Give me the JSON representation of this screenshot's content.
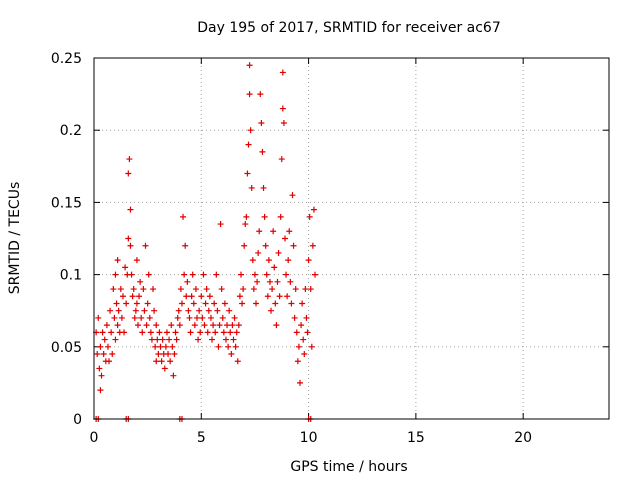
{
  "chart_data": {
    "type": "scatter",
    "title": "Day 195 of 2017, SRMTID for receiver ac67",
    "xlabel": "GPS time / hours",
    "ylabel": "SRMTID / TECUs",
    "xlim": [
      0,
      24
    ],
    "ylim": [
      0,
      0.25
    ],
    "xticks": [
      0,
      5,
      10,
      15,
      20
    ],
    "xtick_labels": [
      "0",
      "5",
      "10",
      "15",
      "20"
    ],
    "yticks": [
      0,
      0.05,
      0.1,
      0.15,
      0.2,
      0.25
    ],
    "ytick_labels": [
      "0",
      "0.05",
      "0.1",
      "0.15",
      "0.2",
      "0.25"
    ],
    "grid": true,
    "marker": "+",
    "color": "#e00000",
    "series": [
      {
        "name": "SRMTID",
        "points": [
          [
            0.1,
            0.0
          ],
          [
            0.2,
            0.0
          ],
          [
            1.5,
            0.0
          ],
          [
            1.6,
            0.0
          ],
          [
            4.0,
            0.0
          ],
          [
            4.1,
            0.0
          ],
          [
            10.0,
            0.0
          ],
          [
            10.1,
            0.0
          ],
          [
            0.1,
            0.06
          ],
          [
            0.15,
            0.045
          ],
          [
            0.2,
            0.07
          ],
          [
            0.25,
            0.035
          ],
          [
            0.3,
            0.05
          ],
          [
            0.3,
            0.02
          ],
          [
            0.35,
            0.03
          ],
          [
            0.4,
            0.06
          ],
          [
            0.45,
            0.045
          ],
          [
            0.5,
            0.055
          ],
          [
            0.55,
            0.04
          ],
          [
            0.6,
            0.065
          ],
          [
            0.65,
            0.05
          ],
          [
            0.7,
            0.04
          ],
          [
            0.75,
            0.075
          ],
          [
            0.8,
            0.06
          ],
          [
            0.85,
            0.045
          ],
          [
            0.9,
            0.09
          ],
          [
            0.95,
            0.07
          ],
          [
            1.0,
            0.1
          ],
          [
            1.0,
            0.055
          ],
          [
            1.05,
            0.08
          ],
          [
            1.1,
            0.11
          ],
          [
            1.1,
            0.065
          ],
          [
            1.15,
            0.075
          ],
          [
            1.2,
            0.06
          ],
          [
            1.25,
            0.09
          ],
          [
            1.3,
            0.07
          ],
          [
            1.35,
            0.085
          ],
          [
            1.4,
            0.06
          ],
          [
            1.45,
            0.105
          ],
          [
            1.5,
            0.08
          ],
          [
            1.55,
            0.1
          ],
          [
            1.6,
            0.125
          ],
          [
            1.6,
            0.17
          ],
          [
            1.65,
            0.18
          ],
          [
            1.7,
            0.145
          ],
          [
            1.7,
            0.12
          ],
          [
            1.75,
            0.1
          ],
          [
            1.8,
            0.085
          ],
          [
            1.85,
            0.09
          ],
          [
            1.9,
            0.07
          ],
          [
            1.95,
            0.075
          ],
          [
            2.0,
            0.08
          ],
          [
            2.0,
            0.11
          ],
          [
            2.05,
            0.065
          ],
          [
            2.1,
            0.085
          ],
          [
            2.15,
            0.095
          ],
          [
            2.2,
            0.07
          ],
          [
            2.25,
            0.06
          ],
          [
            2.3,
            0.09
          ],
          [
            2.35,
            0.075
          ],
          [
            2.4,
            0.12
          ],
          [
            2.45,
            0.065
          ],
          [
            2.5,
            0.08
          ],
          [
            2.55,
            0.1
          ],
          [
            2.6,
            0.07
          ],
          [
            2.65,
            0.06
          ],
          [
            2.7,
            0.055
          ],
          [
            2.75,
            0.09
          ],
          [
            2.8,
            0.075
          ],
          [
            2.85,
            0.05
          ],
          [
            2.9,
            0.04
          ],
          [
            2.9,
            0.065
          ],
          [
            2.95,
            0.055
          ],
          [
            3.0,
            0.045
          ],
          [
            3.05,
            0.06
          ],
          [
            3.1,
            0.05
          ],
          [
            3.15,
            0.04
          ],
          [
            3.2,
            0.055
          ],
          [
            3.25,
            0.045
          ],
          [
            3.3,
            0.035
          ],
          [
            3.35,
            0.05
          ],
          [
            3.4,
            0.06
          ],
          [
            3.45,
            0.045
          ],
          [
            3.5,
            0.055
          ],
          [
            3.55,
            0.04
          ],
          [
            3.6,
            0.065
          ],
          [
            3.65,
            0.05
          ],
          [
            3.7,
            0.03
          ],
          [
            3.75,
            0.045
          ],
          [
            3.8,
            0.06
          ],
          [
            3.85,
            0.055
          ],
          [
            3.9,
            0.07
          ],
          [
            3.95,
            0.075
          ],
          [
            4.0,
            0.065
          ],
          [
            4.05,
            0.09
          ],
          [
            4.1,
            0.08
          ],
          [
            4.15,
            0.14
          ],
          [
            4.2,
            0.1
          ],
          [
            4.25,
            0.12
          ],
          [
            4.3,
            0.085
          ],
          [
            4.35,
            0.095
          ],
          [
            4.4,
            0.075
          ],
          [
            4.45,
            0.07
          ],
          [
            4.5,
            0.06
          ],
          [
            4.55,
            0.085
          ],
          [
            4.6,
            0.1
          ],
          [
            4.65,
            0.08
          ],
          [
            4.7,
            0.065
          ],
          [
            4.75,
            0.09
          ],
          [
            4.8,
            0.07
          ],
          [
            4.85,
            0.055
          ],
          [
            4.9,
            0.075
          ],
          [
            4.95,
            0.06
          ],
          [
            5.0,
            0.085
          ],
          [
            5.05,
            0.07
          ],
          [
            5.1,
            0.1
          ],
          [
            5.15,
            0.065
          ],
          [
            5.2,
            0.08
          ],
          [
            5.25,
            0.09
          ],
          [
            5.3,
            0.06
          ],
          [
            5.35,
            0.075
          ],
          [
            5.4,
            0.085
          ],
          [
            5.45,
            0.07
          ],
          [
            5.5,
            0.055
          ],
          [
            5.55,
            0.065
          ],
          [
            5.6,
            0.08
          ],
          [
            5.65,
            0.06
          ],
          [
            5.7,
            0.1
          ],
          [
            5.75,
            0.075
          ],
          [
            5.8,
            0.05
          ],
          [
            5.85,
            0.065
          ],
          [
            5.9,
            0.135
          ],
          [
            5.95,
            0.09
          ],
          [
            6.0,
            0.07
          ],
          [
            6.05,
            0.06
          ],
          [
            6.1,
            0.08
          ],
          [
            6.15,
            0.055
          ],
          [
            6.2,
            0.065
          ],
          [
            6.25,
            0.05
          ],
          [
            6.3,
            0.075
          ],
          [
            6.35,
            0.06
          ],
          [
            6.4,
            0.045
          ],
          [
            6.45,
            0.065
          ],
          [
            6.5,
            0.055
          ],
          [
            6.55,
            0.07
          ],
          [
            6.6,
            0.05
          ],
          [
            6.65,
            0.06
          ],
          [
            6.7,
            0.04
          ],
          [
            6.75,
            0.065
          ],
          [
            6.8,
            0.085
          ],
          [
            6.85,
            0.1
          ],
          [
            6.9,
            0.08
          ],
          [
            6.95,
            0.09
          ],
          [
            7.0,
            0.12
          ],
          [
            7.05,
            0.135
          ],
          [
            7.1,
            0.14
          ],
          [
            7.15,
            0.17
          ],
          [
            7.2,
            0.19
          ],
          [
            7.25,
            0.225
          ],
          [
            7.25,
            0.245
          ],
          [
            7.3,
            0.2
          ],
          [
            7.35,
            0.16
          ],
          [
            7.4,
            0.11
          ],
          [
            7.45,
            0.09
          ],
          [
            7.5,
            0.1
          ],
          [
            7.55,
            0.08
          ],
          [
            7.6,
            0.095
          ],
          [
            7.65,
            0.115
          ],
          [
            7.7,
            0.13
          ],
          [
            7.75,
            0.225
          ],
          [
            7.8,
            0.205
          ],
          [
            7.85,
            0.185
          ],
          [
            7.9,
            0.16
          ],
          [
            7.95,
            0.14
          ],
          [
            8.0,
            0.12
          ],
          [
            8.05,
            0.1
          ],
          [
            8.1,
            0.085
          ],
          [
            8.15,
            0.11
          ],
          [
            8.2,
            0.095
          ],
          [
            8.25,
            0.075
          ],
          [
            8.3,
            0.09
          ],
          [
            8.35,
            0.13
          ],
          [
            8.4,
            0.105
          ],
          [
            8.45,
            0.08
          ],
          [
            8.5,
            0.065
          ],
          [
            8.55,
            0.095
          ],
          [
            8.6,
            0.115
          ],
          [
            8.65,
            0.085
          ],
          [
            8.7,
            0.14
          ],
          [
            8.75,
            0.18
          ],
          [
            8.8,
            0.215
          ],
          [
            8.8,
            0.24
          ],
          [
            8.85,
            0.205
          ],
          [
            8.9,
            0.125
          ],
          [
            8.95,
            0.1
          ],
          [
            9.0,
            0.085
          ],
          [
            9.05,
            0.11
          ],
          [
            9.1,
            0.13
          ],
          [
            9.15,
            0.095
          ],
          [
            9.2,
            0.08
          ],
          [
            9.25,
            0.155
          ],
          [
            9.3,
            0.12
          ],
          [
            9.35,
            0.07
          ],
          [
            9.4,
            0.09
          ],
          [
            9.45,
            0.06
          ],
          [
            9.5,
            0.04
          ],
          [
            9.55,
            0.05
          ],
          [
            9.6,
            0.025
          ],
          [
            9.65,
            0.065
          ],
          [
            9.7,
            0.08
          ],
          [
            9.75,
            0.055
          ],
          [
            9.8,
            0.045
          ],
          [
            9.85,
            0.09
          ],
          [
            9.9,
            0.07
          ],
          [
            9.95,
            0.06
          ],
          [
            10.0,
            0.11
          ],
          [
            10.05,
            0.14
          ],
          [
            10.1,
            0.09
          ],
          [
            10.15,
            0.05
          ],
          [
            10.2,
            0.12
          ],
          [
            10.25,
            0.145
          ],
          [
            10.3,
            0.1
          ]
        ]
      }
    ]
  }
}
